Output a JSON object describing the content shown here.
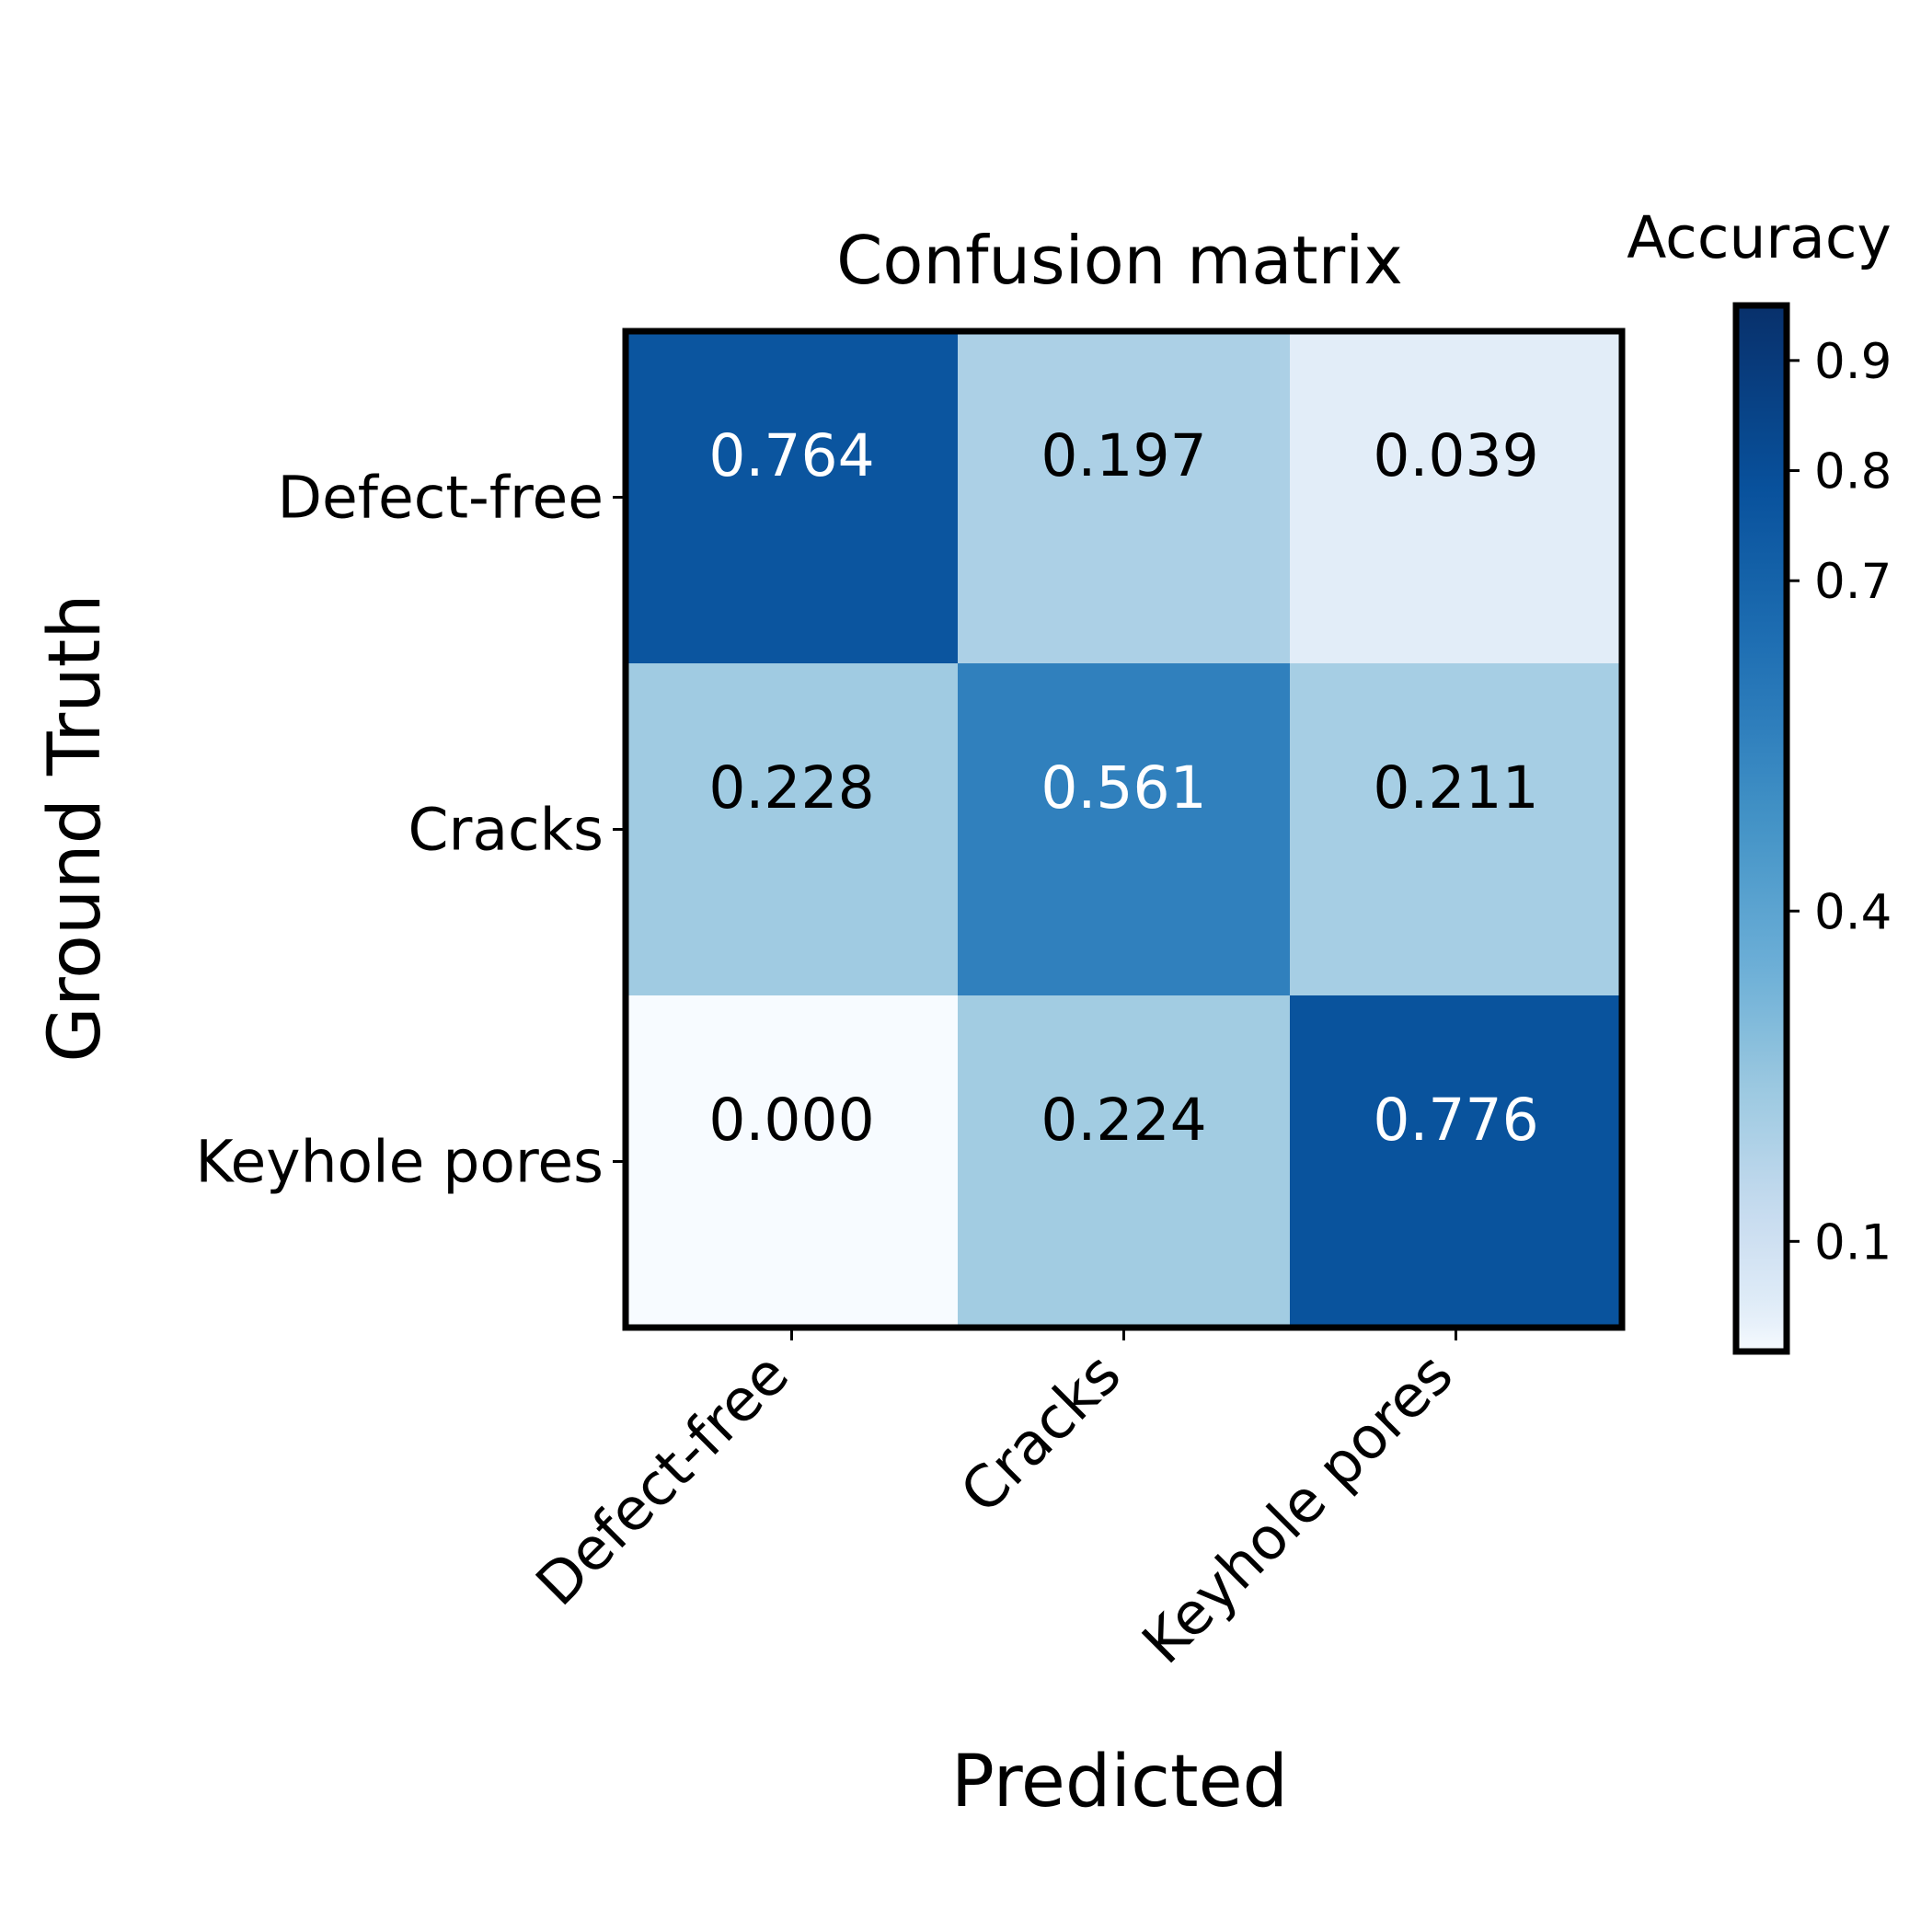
{
  "chart_data": {
    "type": "heatmap",
    "title": "Confusion matrix",
    "xlabel": "Predicted",
    "ylabel": "Ground Truth",
    "x_categories": [
      "Defect-free",
      "Cracks",
      "Keyhole pores"
    ],
    "y_categories": [
      "Defect-free",
      "Cracks",
      "Keyhole pores"
    ],
    "values": [
      [
        0.764,
        0.197,
        0.039
      ],
      [
        0.228,
        0.561,
        0.211
      ],
      [
        0.0,
        0.224,
        0.776
      ]
    ],
    "cell_labels": [
      [
        "0.764",
        "0.197",
        "0.039"
      ],
      [
        "0.228",
        "0.561",
        "0.211"
      ],
      [
        "0.000",
        "0.224",
        "0.776"
      ]
    ],
    "colorbar": {
      "title": "Accuracy",
      "ticks": [
        0.1,
        0.4,
        0.7,
        0.8,
        0.9
      ],
      "tick_labels": [
        "0.1",
        "0.4",
        "0.7",
        "0.8",
        "0.9"
      ],
      "range": [
        0.0,
        0.95
      ],
      "colormap": "Blues",
      "scale": "nonlinear"
    }
  }
}
